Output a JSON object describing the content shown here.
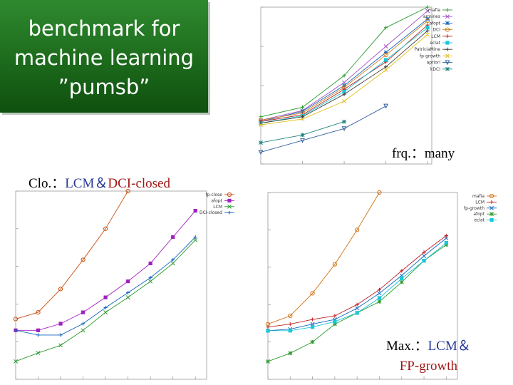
{
  "title": {
    "lines": [
      "benchmark for",
      "machine learning",
      "”pumsb”"
    ]
  },
  "captions": {
    "frq": {
      "label": "frq.：",
      "value": "many"
    },
    "clo": {
      "label": "Clo.：",
      "algo1": "LCM＆",
      "algo2": "DCI-closed"
    },
    "max": {
      "label": "Max.：",
      "algo1": "LCM＆",
      "algo2": "FP-growth"
    }
  },
  "colors": {
    "title_bg": "#1c6a1c",
    "caption_blue": "#2a3a9a",
    "caption_red": "#a01818"
  },
  "chart_data": [
    {
      "type": "line",
      "name": "frequent",
      "yscale": "log",
      "ylim": [
        0.1,
        1000
      ],
      "x": [
        1,
        2,
        3,
        4,
        5
      ],
      "xlim": [
        1,
        5.1
      ],
      "legend_position": "right",
      "series": [
        {
          "name": "mafia",
          "color": "#2e9a2e",
          "marker": "+",
          "values": [
            1.6,
            2.8,
            18,
            300,
            1000
          ]
        },
        {
          "name": "armines",
          "color": "#a050c0",
          "marker": "x",
          "values": [
            1.3,
            2.3,
            12,
            100,
            800
          ]
        },
        {
          "name": "afopt",
          "color": "#1565c0",
          "marker": "*",
          "values": [
            1.2,
            2.2,
            10,
            70,
            500
          ]
        },
        {
          "name": "DCI",
          "color": "#d08020",
          "marker": "o",
          "values": [
            1.3,
            2.0,
            9,
            60,
            450
          ]
        },
        {
          "name": "LCM",
          "color": "#c02020",
          "marker": "+",
          "values": [
            1.2,
            1.8,
            8,
            40,
            350
          ]
        },
        {
          "name": "eclat",
          "color": "#18c8d8",
          "marker": "s",
          "values": [
            1.1,
            1.7,
            7,
            45,
            300
          ]
        },
        {
          "name": "PatriciaMine",
          "color": "#404040",
          "marker": "+",
          "values": [
            1.1,
            1.6,
            6,
            30,
            250
          ]
        },
        {
          "name": "fp-growth",
          "color": "#e0c020",
          "marker": "x",
          "values": [
            1.0,
            1.4,
            4,
            25,
            200
          ]
        },
        {
          "name": "apriori",
          "color": "#3060a0",
          "marker": "v",
          "values": [
            0.2,
            0.4,
            0.8,
            3,
            null
          ]
        },
        {
          "name": "kDCI",
          "color": "#208080",
          "marker": "*",
          "values": [
            0.35,
            0.55,
            1.2,
            null,
            null
          ]
        }
      ]
    },
    {
      "type": "line",
      "name": "closed",
      "yscale": "log",
      "ylim": [
        0.01,
        1000
      ],
      "x": [
        1,
        2,
        3,
        4,
        5,
        6,
        7,
        8,
        9
      ],
      "xlim": [
        1,
        9.5
      ],
      "legend_position": "top-right",
      "series": [
        {
          "name": "fp-close",
          "color": "#c85010",
          "marker": "o",
          "values": [
            0.4,
            0.6,
            2.5,
            15,
            100,
            1000,
            null,
            null,
            null
          ]
        },
        {
          "name": "afopt",
          "color": "#a020c0",
          "marker": "s",
          "values": [
            0.2,
            0.2,
            0.3,
            0.6,
            1.5,
            4,
            12,
            60,
            300
          ]
        },
        {
          "name": "LCM",
          "color": "#2e9a2e",
          "marker": "x",
          "values": [
            0.03,
            0.05,
            0.08,
            0.2,
            0.6,
            1.5,
            4,
            12,
            50
          ]
        },
        {
          "name": "DCI-closed",
          "color": "#1565c0",
          "marker": "+",
          "values": [
            0.2,
            0.15,
            0.15,
            0.3,
            0.8,
            2,
            5,
            15,
            60
          ]
        }
      ]
    },
    {
      "type": "line",
      "name": "maximal",
      "yscale": "log",
      "ylim": [
        0.01,
        1000
      ],
      "x": [
        1,
        2,
        3,
        4,
        5,
        6,
        7,
        8,
        9
      ],
      "xlim": [
        1,
        9.5
      ],
      "legend_position": "top-right",
      "series": [
        {
          "name": "mafia",
          "color": "#d07010",
          "marker": "o",
          "values": [
            0.3,
            0.5,
            2,
            12,
            100,
            1000,
            null,
            null,
            null
          ]
        },
        {
          "name": "LCM",
          "color": "#c02020",
          "marker": "+",
          "values": [
            0.25,
            0.3,
            0.4,
            0.5,
            1,
            2.5,
            8,
            25,
            70
          ]
        },
        {
          "name": "fp-growth",
          "color": "#1565c0",
          "marker": "x",
          "values": [
            0.2,
            0.22,
            0.3,
            0.4,
            0.8,
            2,
            6,
            20,
            60
          ]
        },
        {
          "name": "afopt",
          "color": "#2e9a2e",
          "marker": "*",
          "values": [
            0.03,
            0.05,
            0.1,
            0.3,
            0.6,
            1.2,
            4,
            15,
            40
          ]
        },
        {
          "name": "eclat",
          "color": "#18c8d8",
          "marker": "s",
          "values": [
            0.2,
            0.2,
            0.25,
            0.35,
            0.6,
            1.5,
            5,
            15,
            45
          ]
        }
      ]
    }
  ]
}
